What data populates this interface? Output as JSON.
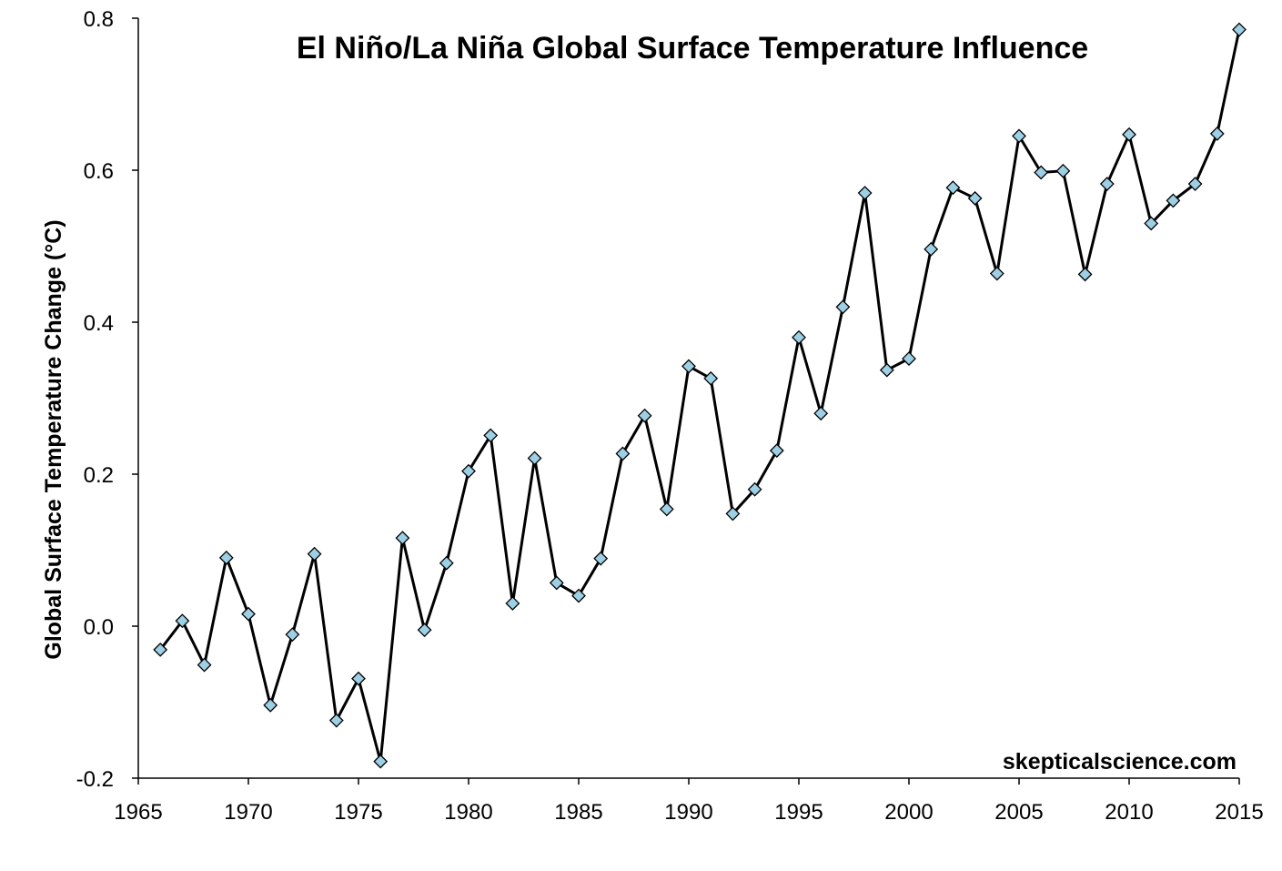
{
  "chart_data": {
    "type": "line",
    "title": "El Niño/La Niña Global Surface Temperature Influence",
    "xlabel": "",
    "ylabel": "Global Surface Temperature Change (°C)",
    "annotation": "skepticalscience.com",
    "xlim": [
      1965,
      2015
    ],
    "ylim": [
      -0.2,
      0.8
    ],
    "x_ticks": [
      1965,
      1970,
      1975,
      1980,
      1985,
      1990,
      1995,
      2000,
      2005,
      2010,
      2015
    ],
    "x_tick_labels": [
      "1965",
      "1970",
      "1975",
      "1980",
      "1985",
      "1990",
      "1995",
      "2000",
      "2005",
      "2010",
      "2015"
    ],
    "y_ticks": [
      -0.2,
      0.0,
      0.2,
      0.4,
      0.6,
      0.8
    ],
    "y_tick_labels": [
      "-0.2",
      "0.0",
      "0.2",
      "0.4",
      "0.6",
      "0.8"
    ],
    "grid": false,
    "legend": "none",
    "line_color": "#000000",
    "marker": "diamond",
    "marker_fill": "#9dcfe5",
    "marker_stroke": "#000000",
    "series": [
      {
        "x": [
          1966,
          1967,
          1968,
          1969,
          1970,
          1971,
          1972,
          1973,
          1974,
          1975,
          1976,
          1977,
          1978,
          1979,
          1980,
          1981,
          1982,
          1983,
          1984,
          1985,
          1986,
          1987,
          1988,
          1989,
          1990,
          1991,
          1992,
          1993,
          1994,
          1995,
          1996,
          1997,
          1998,
          1999,
          2000,
          2001,
          2002,
          2003,
          2004,
          2005,
          2006,
          2007,
          2008,
          2009,
          2010,
          2011,
          2012,
          2013,
          2014,
          2015
        ],
        "values": [
          -0.031,
          0.007,
          -0.051,
          0.09,
          0.016,
          -0.104,
          -0.011,
          0.095,
          -0.124,
          -0.069,
          -0.178,
          0.116,
          -0.005,
          0.083,
          0.204,
          0.251,
          0.03,
          0.221,
          0.057,
          0.04,
          0.089,
          0.227,
          0.277,
          0.154,
          0.342,
          0.326,
          0.148,
          0.18,
          0.231,
          0.38,
          0.28,
          0.42,
          0.57,
          0.337,
          0.352,
          0.496,
          0.577,
          0.563,
          0.464,
          0.645,
          0.597,
          0.599,
          0.463,
          0.582,
          0.647,
          0.53,
          0.56,
          0.582,
          0.648,
          0.785
        ]
      }
    ]
  }
}
